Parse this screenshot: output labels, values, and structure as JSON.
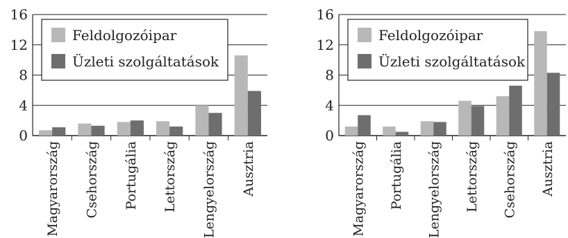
{
  "colors": {
    "series_light": "#b8b8b8",
    "series_dark": "#6e6e6e",
    "gridline": "#222222",
    "axis": "#222222"
  },
  "chart_data": [
    {
      "type": "bar",
      "title": "",
      "xlabel": "",
      "ylabel": "",
      "ylim": [
        0,
        16
      ],
      "yticks": [
        "0",
        "4",
        "8",
        "12",
        "16"
      ],
      "grid": "horizontal",
      "legend": "top-left",
      "categories": [
        "Magyarország",
        "Csehország",
        "Portugália",
        "Lettország",
        "Lengyelország",
        "Ausztria"
      ],
      "series": [
        {
          "name": "Feldolgozóipar",
          "values": [
            0.7,
            1.6,
            1.8,
            1.9,
            4.0,
            10.6
          ]
        },
        {
          "name": "Üzleti szolgáltatások",
          "values": [
            1.1,
            1.3,
            2.0,
            1.2,
            3.0,
            5.9
          ]
        }
      ]
    },
    {
      "type": "bar",
      "title": "",
      "xlabel": "",
      "ylabel": "",
      "ylim": [
        0,
        16
      ],
      "yticks": [
        "0",
        "4",
        "8",
        "12",
        "16"
      ],
      "grid": "horizontal",
      "legend": "top-left",
      "categories": [
        "Magyarország",
        "Portugália",
        "Lengyelország",
        "Lettország",
        "Csehország",
        "Ausztria"
      ],
      "series": [
        {
          "name": "Feldolgozóipar",
          "values": [
            1.2,
            1.2,
            1.9,
            4.6,
            5.2,
            13.8
          ]
        },
        {
          "name": "Üzleti szolgáltatások",
          "values": [
            2.7,
            0.5,
            1.8,
            3.9,
            6.6,
            8.3
          ]
        }
      ]
    }
  ]
}
